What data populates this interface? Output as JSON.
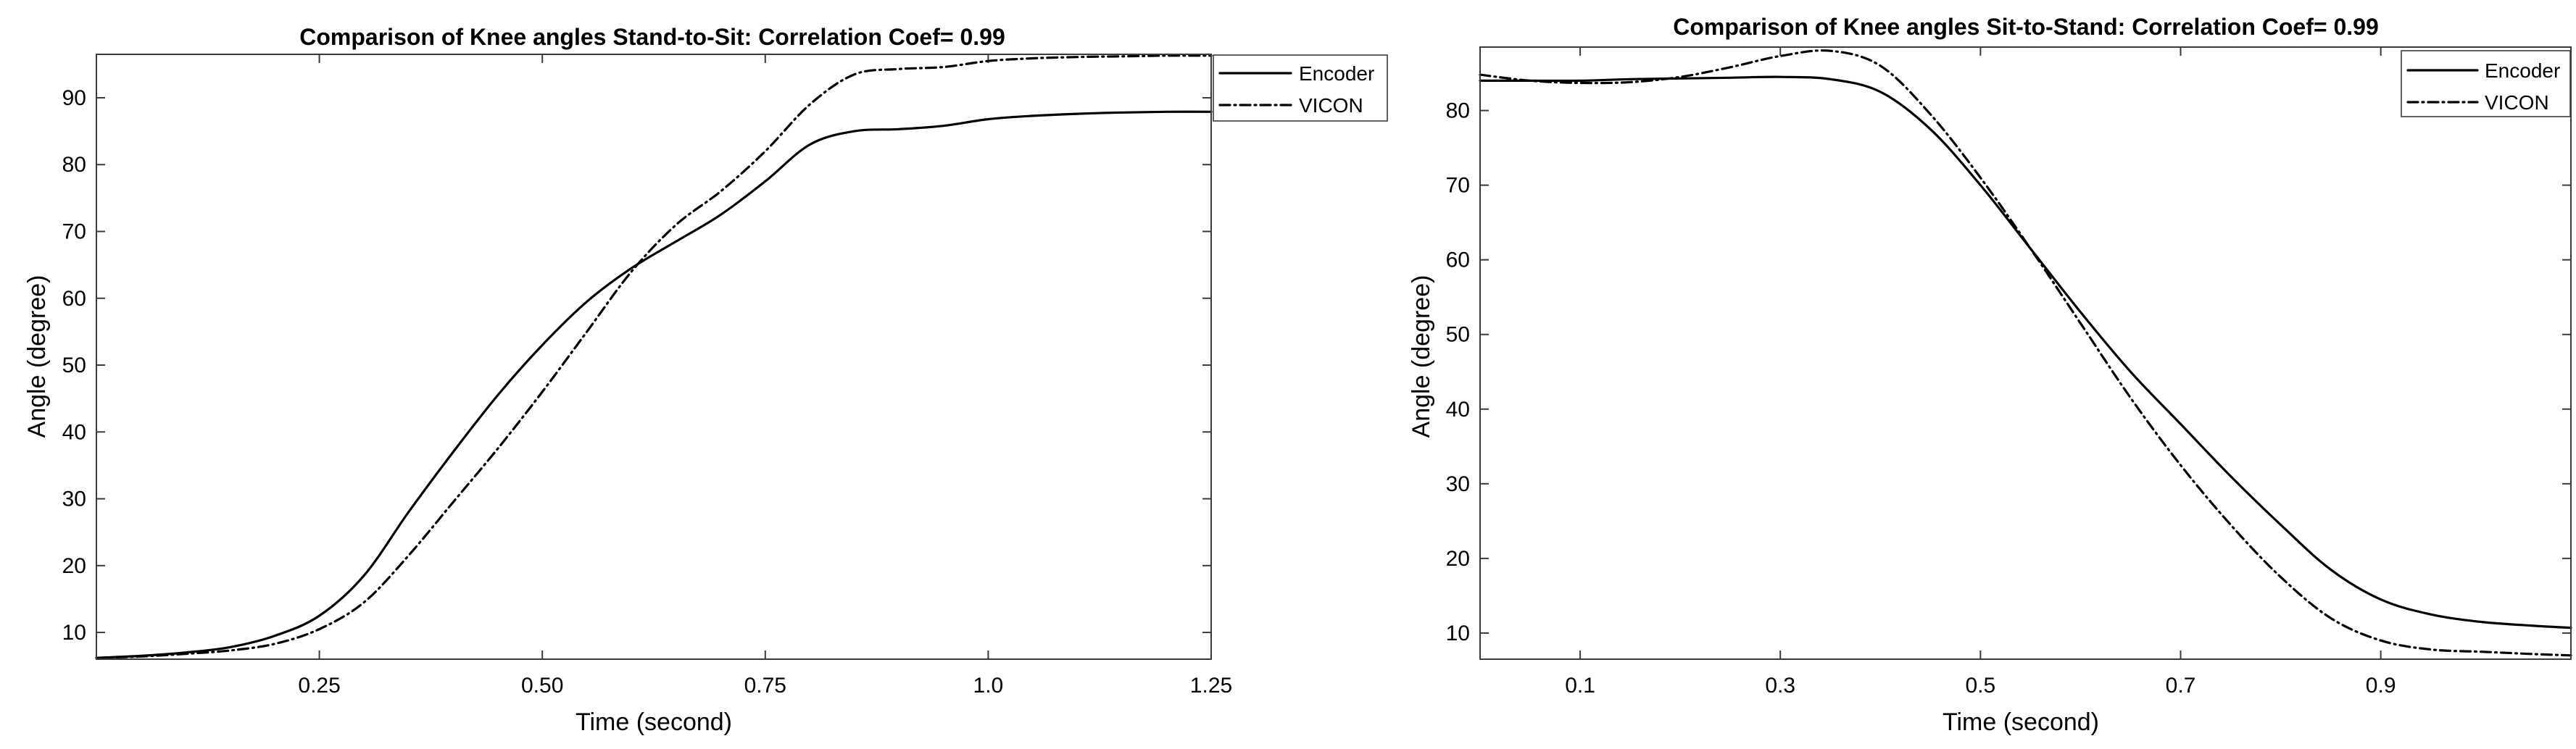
{
  "chart_data": [
    {
      "type": "line",
      "title": "Comparison of Knee angles Stand-to-Sit: Correlation Coef= 0.99",
      "xlabel": "Time (second)",
      "ylabel": "Angle (degree)",
      "xlim": [
        0,
        1.25
      ],
      "ylim": [
        6,
        96.5
      ],
      "xticks": [
        0.25,
        0.5,
        0.75,
        1.0,
        1.25
      ],
      "xtick_labels": [
        "0.25",
        "0.50",
        "0.75",
        "1.0",
        "1.25"
      ],
      "yticks": [
        10,
        20,
        30,
        40,
        50,
        60,
        70,
        80,
        90
      ],
      "ytick_labels": [
        "10",
        "20",
        "30",
        "40",
        "50",
        "60",
        "70",
        "80",
        "90"
      ],
      "grid": false,
      "legend_position": "top-right",
      "series": [
        {
          "name": "Encoder",
          "style": "solid",
          "x": [
            0,
            0.05,
            0.1,
            0.15,
            0.2,
            0.25,
            0.3,
            0.35,
            0.4,
            0.45,
            0.5,
            0.55,
            0.6,
            0.65,
            0.7,
            0.75,
            0.8,
            0.85,
            0.9,
            0.95,
            1.0,
            1.05,
            1.1,
            1.15,
            1.2,
            1.25
          ],
          "y": [
            6.2,
            6.5,
            7.0,
            7.8,
            9.5,
            12.5,
            18.5,
            28.0,
            37.0,
            45.5,
            53.0,
            59.5,
            64.5,
            68.5,
            72.5,
            77.5,
            83.0,
            85.0,
            85.3,
            85.8,
            86.8,
            87.3,
            87.6,
            87.8,
            87.9,
            87.9
          ]
        },
        {
          "name": "VICON",
          "style": "dash-dot",
          "x": [
            0,
            0.05,
            0.1,
            0.15,
            0.2,
            0.25,
            0.3,
            0.35,
            0.4,
            0.45,
            0.5,
            0.55,
            0.6,
            0.65,
            0.7,
            0.75,
            0.8,
            0.85,
            0.9,
            0.95,
            1.0,
            1.05,
            1.1,
            1.15,
            1.2,
            1.25
          ],
          "y": [
            6.2,
            6.4,
            6.8,
            7.3,
            8.3,
            10.5,
            14.5,
            21.5,
            29.5,
            37.5,
            46.0,
            55.0,
            64.0,
            71.0,
            76.0,
            82.0,
            89.0,
            93.5,
            94.3,
            94.6,
            95.5,
            95.9,
            96.1,
            96.2,
            96.3,
            96.3
          ]
        }
      ]
    },
    {
      "type": "line",
      "title": "Comparison of Knee angles Sit-to-Stand: Correlation Coef= 0.99",
      "xlabel": "Time (second)",
      "ylabel": "Angle (degree)",
      "xlim": [
        0,
        1.09
      ],
      "ylim": [
        6.5,
        88.5
      ],
      "xticks": [
        0.1,
        0.3,
        0.5,
        0.7,
        0.9
      ],
      "xtick_labels": [
        "0.1",
        "0.3",
        "0.5",
        "0.7",
        "0.9"
      ],
      "yticks": [
        10,
        20,
        30,
        40,
        50,
        60,
        70,
        80
      ],
      "ytick_labels": [
        "10",
        "20",
        "30",
        "40",
        "50",
        "60",
        "70",
        "80"
      ],
      "grid": false,
      "legend_position": "top-right",
      "series": [
        {
          "name": "Encoder",
          "style": "solid",
          "x": [
            0,
            0.05,
            0.1,
            0.15,
            0.2,
            0.25,
            0.3,
            0.35,
            0.4,
            0.45,
            0.5,
            0.55,
            0.6,
            0.65,
            0.7,
            0.75,
            0.8,
            0.85,
            0.9,
            0.95,
            1.0,
            1.05,
            1.09
          ],
          "y": [
            84.0,
            84.0,
            84.0,
            84.2,
            84.3,
            84.4,
            84.5,
            84.2,
            82.5,
            77.5,
            70.0,
            61.5,
            53.0,
            45.0,
            38.0,
            31.0,
            24.5,
            18.5,
            14.5,
            12.5,
            11.5,
            11.0,
            10.7
          ]
        },
        {
          "name": "VICON",
          "style": "dash-dot",
          "x": [
            0,
            0.05,
            0.1,
            0.15,
            0.2,
            0.25,
            0.3,
            0.35,
            0.4,
            0.45,
            0.5,
            0.55,
            0.6,
            0.65,
            0.7,
            0.75,
            0.8,
            0.85,
            0.9,
            0.95,
            1.0,
            1.05,
            1.09
          ],
          "y": [
            84.8,
            84.0,
            83.7,
            83.8,
            84.5,
            85.8,
            87.3,
            88.0,
            86.0,
            79.5,
            71.0,
            61.5,
            51.5,
            41.5,
            32.5,
            24.5,
            17.5,
            12.0,
            9.0,
            7.8,
            7.5,
            7.2,
            7.0
          ]
        }
      ]
    }
  ]
}
